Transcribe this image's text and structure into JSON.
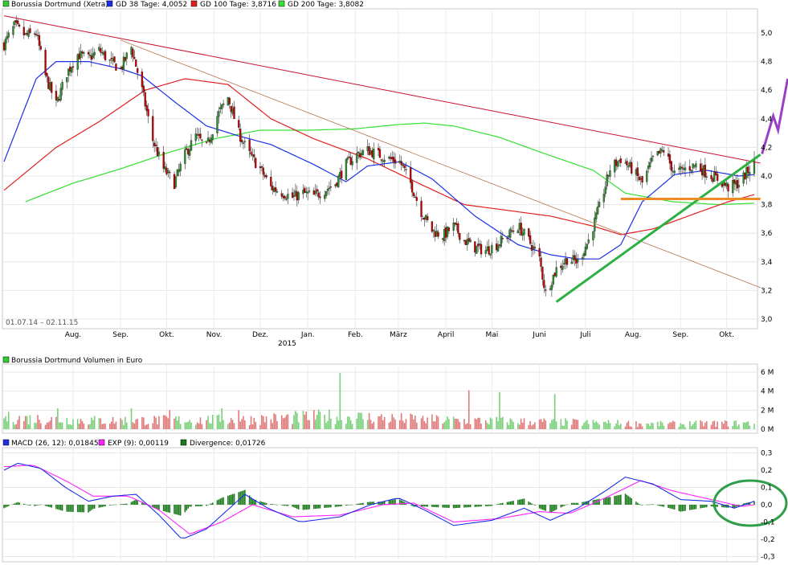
{
  "colors": {
    "price_up": "#2e8b2e",
    "price_down": "#c00000",
    "gd38": "#1c2fe6",
    "gd100": "#e02020",
    "gd200": "#33e033",
    "upper_trend": "#c8102e",
    "long_trend": "#b5734f",
    "support_trend": "#2db043",
    "horizontal_level": "#f08a24",
    "forecast_arrow": "#9b3fc6",
    "macd": "#1c2fe6",
    "exp": "#ff22ff",
    "divergence": "#1a7a1a",
    "vol_up": "#7ad07a",
    "vol_down": "#e07a7a",
    "highlight_circle": "#2e9e4a"
  },
  "chart_data": [
    {
      "type": "candlestick",
      "title": "",
      "legend": [
        {
          "name": "Borussia Dortmund (Xetra)",
          "color": "#33cc33"
        },
        {
          "name": "GD 38 Tage: 4,0052",
          "color": "#1c2fe6"
        },
        {
          "name": "GD 100 Tage: 3,8716",
          "color": "#e02020"
        },
        {
          "name": "GD 200 Tage: 3,8082",
          "color": "#33e033"
        }
      ],
      "date_range_label": "01.07.14 – 02.11.15",
      "x_tick_labels": [
        "Aug.",
        "Sep.",
        "Okt.",
        "Nov.",
        "Dez.",
        "Jan.",
        "Feb.",
        "März",
        "April",
        "Mai",
        "Juni",
        "Juli",
        "Aug.",
        "Sep.",
        "Okt."
      ],
      "year_label": "2015",
      "y_tick_labels": [
        "5,0",
        "4,8",
        "4,6",
        "4,4",
        "4,2",
        "4,0",
        "3,8",
        "3,6",
        "3,4",
        "3,2",
        "3,0"
      ],
      "ylim": [
        3.0,
        5.2
      ],
      "price_anchors": [
        [
          "2014-07-01",
          4.92
        ],
        [
          "2014-07-08",
          5.05
        ],
        [
          "2014-07-15",
          4.98
        ],
        [
          "2014-07-22",
          5.0
        ],
        [
          "2014-07-28",
          4.7
        ],
        [
          "2014-08-04",
          4.5
        ],
        [
          "2014-08-11",
          4.72
        ],
        [
          "2014-08-18",
          4.85
        ],
        [
          "2014-08-25",
          4.82
        ],
        [
          "2014-09-01",
          4.88
        ],
        [
          "2014-09-08",
          4.8
        ],
        [
          "2014-09-15",
          4.75
        ],
        [
          "2014-09-22",
          4.9
        ],
        [
          "2014-09-29",
          4.6
        ],
        [
          "2014-10-06",
          4.25
        ],
        [
          "2014-10-13",
          4.05
        ],
        [
          "2014-10-20",
          3.95
        ],
        [
          "2014-10-27",
          4.15
        ],
        [
          "2014-11-03",
          4.28
        ],
        [
          "2014-11-10",
          4.2
        ],
        [
          "2014-11-17",
          4.42
        ],
        [
          "2014-11-24",
          4.55
        ],
        [
          "2014-12-01",
          4.3
        ],
        [
          "2014-12-08",
          4.15
        ],
        [
          "2014-12-15",
          4.05
        ],
        [
          "2014-12-22",
          3.92
        ],
        [
          "2015-01-05",
          3.85
        ],
        [
          "2015-01-12",
          3.88
        ],
        [
          "2015-01-19",
          3.86
        ],
        [
          "2015-01-26",
          3.9
        ],
        [
          "2015-02-02",
          3.95
        ],
        [
          "2015-02-09",
          4.08
        ],
        [
          "2015-02-16",
          4.15
        ],
        [
          "2015-02-23",
          4.18
        ],
        [
          "2015-03-02",
          4.15
        ],
        [
          "2015-03-09",
          4.12
        ],
        [
          "2015-03-16",
          4.1
        ],
        [
          "2015-03-23",
          3.95
        ],
        [
          "2015-03-30",
          3.75
        ],
        [
          "2015-04-06",
          3.62
        ],
        [
          "2015-04-13",
          3.58
        ],
        [
          "2015-04-20",
          3.65
        ],
        [
          "2015-04-27",
          3.55
        ],
        [
          "2015-05-04",
          3.5
        ],
        [
          "2015-05-11",
          3.48
        ],
        [
          "2015-05-18",
          3.52
        ],
        [
          "2015-05-25",
          3.58
        ],
        [
          "2015-06-01",
          3.65
        ],
        [
          "2015-06-08",
          3.55
        ],
        [
          "2015-06-15",
          3.42
        ],
        [
          "2015-06-19",
          3.18
        ],
        [
          "2015-06-26",
          3.35
        ],
        [
          "2015-07-03",
          3.42
        ],
        [
          "2015-07-10",
          3.4
        ],
        [
          "2015-07-17",
          3.55
        ],
        [
          "2015-07-24",
          3.78
        ],
        [
          "2015-07-31",
          4.05
        ],
        [
          "2015-08-07",
          4.12
        ],
        [
          "2015-08-14",
          4.05
        ],
        [
          "2015-08-21",
          3.95
        ],
        [
          "2015-08-28",
          4.12
        ],
        [
          "2015-09-04",
          4.18
        ],
        [
          "2015-09-11",
          4.02
        ],
        [
          "2015-09-18",
          4.05
        ],
        [
          "2015-09-25",
          4.08
        ],
        [
          "2015-10-02",
          4.02
        ],
        [
          "2015-10-09",
          3.98
        ],
        [
          "2015-10-16",
          3.92
        ],
        [
          "2015-10-23",
          3.95
        ],
        [
          "2015-10-30",
          4.05
        ],
        [
          "2015-11-02",
          4.1
        ]
      ],
      "gd38_anchors": [
        [
          "2014-07-01",
          4.1
        ],
        [
          "2014-07-22",
          4.68
        ],
        [
          "2014-08-04",
          4.8
        ],
        [
          "2014-08-25",
          4.8
        ],
        [
          "2014-09-15",
          4.75
        ],
        [
          "2014-09-29",
          4.7
        ],
        [
          "2014-10-20",
          4.52
        ],
        [
          "2014-11-10",
          4.35
        ],
        [
          "2014-12-01",
          4.28
        ],
        [
          "2014-12-22",
          4.22
        ],
        [
          "2015-01-19",
          4.08
        ],
        [
          "2015-02-09",
          3.96
        ],
        [
          "2015-02-23",
          4.07
        ],
        [
          "2015-03-16",
          4.1
        ],
        [
          "2015-04-06",
          3.98
        ],
        [
          "2015-05-04",
          3.72
        ],
        [
          "2015-06-01",
          3.52
        ],
        [
          "2015-06-22",
          3.45
        ],
        [
          "2015-07-10",
          3.42
        ],
        [
          "2015-07-24",
          3.42
        ],
        [
          "2015-08-07",
          3.52
        ],
        [
          "2015-08-21",
          3.82
        ],
        [
          "2015-09-11",
          4.01
        ],
        [
          "2015-10-02",
          4.04
        ],
        [
          "2015-10-23",
          4.0
        ],
        [
          "2015-11-02",
          4.01
        ]
      ],
      "gd100_anchors": [
        [
          "2014-07-01",
          3.9
        ],
        [
          "2014-08-04",
          4.2
        ],
        [
          "2014-09-01",
          4.38
        ],
        [
          "2014-10-01",
          4.6
        ],
        [
          "2014-10-27",
          4.68
        ],
        [
          "2014-11-24",
          4.64
        ],
        [
          "2014-12-22",
          4.4
        ],
        [
          "2015-01-19",
          4.26
        ],
        [
          "2015-02-23",
          4.12
        ],
        [
          "2015-03-30",
          3.94
        ],
        [
          "2015-04-27",
          3.8
        ],
        [
          "2015-05-25",
          3.76
        ],
        [
          "2015-06-22",
          3.72
        ],
        [
          "2015-07-20",
          3.65
        ],
        [
          "2015-08-07",
          3.59
        ],
        [
          "2015-08-28",
          3.63
        ],
        [
          "2015-09-25",
          3.74
        ],
        [
          "2015-10-16",
          3.82
        ],
        [
          "2015-11-02",
          3.87
        ]
      ],
      "gd200_anchors": [
        [
          "2014-07-15",
          3.82
        ],
        [
          "2014-08-15",
          3.95
        ],
        [
          "2014-09-15",
          4.05
        ],
        [
          "2014-10-15",
          4.16
        ],
        [
          "2014-11-15",
          4.26
        ],
        [
          "2014-12-15",
          4.32
        ],
        [
          "2015-01-15",
          4.32
        ],
        [
          "2015-02-15",
          4.33
        ],
        [
          "2015-03-15",
          4.36
        ],
        [
          "2015-04-01",
          4.37
        ],
        [
          "2015-04-20",
          4.35
        ],
        [
          "2015-05-20",
          4.27
        ],
        [
          "2015-06-20",
          4.15
        ],
        [
          "2015-07-20",
          4.04
        ],
        [
          "2015-08-10",
          3.88
        ],
        [
          "2015-09-10",
          3.82
        ],
        [
          "2015-10-10",
          3.8
        ],
        [
          "2015-11-02",
          3.81
        ]
      ],
      "trend_lines": [
        {
          "name": "upper",
          "from": [
            "2014-07-01",
            5.12
          ],
          "to": [
            "2015-11-06",
            4.09
          ]
        },
        {
          "name": "long",
          "from": [
            "2014-09-15",
            4.95
          ],
          "to": [
            "2015-11-06",
            3.22
          ]
        },
        {
          "name": "support",
          "from": [
            "2015-06-26",
            3.12
          ],
          "to": [
            "2015-11-06",
            4.15
          ]
        },
        {
          "name": "horizontal",
          "from": [
            "2015-08-07",
            3.84
          ],
          "to": [
            "2015-11-06",
            3.84
          ]
        }
      ]
    },
    {
      "type": "bar",
      "title": "",
      "legend": [
        {
          "name": "Borussia Dortmund Volumen in Euro",
          "color": "#33cc33"
        }
      ],
      "y_tick_labels": [
        "6 M",
        "4 M",
        "2 M",
        "0 M"
      ],
      "ylim": [
        0,
        6
      ],
      "unit": "M EUR",
      "spikes": [
        [
          "2014-08-05",
          2.2
        ],
        [
          "2014-09-22",
          2.2
        ],
        [
          "2014-10-17",
          2.0
        ],
        [
          "2014-11-20",
          2.2
        ],
        [
          "2014-12-01",
          2.0
        ],
        [
          "2015-02-05",
          5.9
        ],
        [
          "2015-04-30",
          4.1
        ],
        [
          "2015-05-20",
          3.9
        ],
        [
          "2015-06-25",
          3.7
        ]
      ],
      "baseline_anchors": [
        [
          "2014-07-01",
          1.3
        ],
        [
          "2014-09-01",
          1.0
        ],
        [
          "2014-12-01",
          1.1
        ],
        [
          "2015-02-01",
          1.5
        ],
        [
          "2015-04-01",
          1.1
        ],
        [
          "2015-07-01",
          0.8
        ],
        [
          "2015-09-01",
          0.6
        ],
        [
          "2015-11-02",
          0.7
        ]
      ]
    },
    {
      "type": "line",
      "title": "",
      "legend": [
        {
          "name": "MACD (26, 12): 0,01845",
          "color": "#1c2fe6"
        },
        {
          "name": "EXP (9): 0,00119",
          "color": "#ff22ff"
        },
        {
          "name": "Divergence: 0,01726",
          "color": "#1a7a1a"
        }
      ],
      "y_tick_labels": [
        "0,3",
        "0,2",
        "0,1",
        "0,0",
        "-0,1",
        "-0,2",
        "-0,3"
      ],
      "ylim": [
        -0.3,
        0.3
      ],
      "macd_anchors": [
        [
          "2014-07-01",
          0.2
        ],
        [
          "2014-07-10",
          0.24
        ],
        [
          "2014-07-25",
          0.21
        ],
        [
          "2014-08-10",
          0.1
        ],
        [
          "2014-08-25",
          0.02
        ],
        [
          "2014-09-10",
          0.05
        ],
        [
          "2014-09-25",
          0.06
        ],
        [
          "2014-10-10",
          -0.06
        ],
        [
          "2014-10-25",
          -0.2
        ],
        [
          "2014-11-10",
          -0.14
        ],
        [
          "2014-11-25",
          -0.02
        ],
        [
          "2014-12-05",
          0.06
        ],
        [
          "2014-12-20",
          -0.02
        ],
        [
          "2015-01-10",
          -0.1
        ],
        [
          "2015-02-05",
          -0.07
        ],
        [
          "2015-02-25",
          0.0
        ],
        [
          "2015-03-15",
          0.04
        ],
        [
          "2015-04-01",
          -0.03
        ],
        [
          "2015-04-20",
          -0.12
        ],
        [
          "2015-05-15",
          -0.09
        ],
        [
          "2015-06-05",
          -0.02
        ],
        [
          "2015-06-22",
          -0.09
        ],
        [
          "2015-07-10",
          -0.02
        ],
        [
          "2015-07-28",
          0.08
        ],
        [
          "2015-08-10",
          0.16
        ],
        [
          "2015-08-28",
          0.12
        ],
        [
          "2015-09-15",
          0.03
        ],
        [
          "2015-10-05",
          0.02
        ],
        [
          "2015-10-20",
          -0.02
        ],
        [
          "2015-11-02",
          0.02
        ]
      ],
      "exp_anchors": [
        [
          "2014-07-01",
          0.22
        ],
        [
          "2014-07-20",
          0.23
        ],
        [
          "2014-08-10",
          0.14
        ],
        [
          "2014-08-28",
          0.05
        ],
        [
          "2014-09-20",
          0.05
        ],
        [
          "2014-10-10",
          -0.03
        ],
        [
          "2014-10-30",
          -0.17
        ],
        [
          "2014-11-20",
          -0.1
        ],
        [
          "2014-12-10",
          0.0
        ],
        [
          "2015-01-05",
          -0.07
        ],
        [
          "2015-02-05",
          -0.06
        ],
        [
          "2015-03-05",
          0.0
        ],
        [
          "2015-03-25",
          0.01
        ],
        [
          "2015-04-20",
          -0.1
        ],
        [
          "2015-05-20",
          -0.08
        ],
        [
          "2015-06-15",
          -0.04
        ],
        [
          "2015-07-05",
          -0.05
        ],
        [
          "2015-07-28",
          0.04
        ],
        [
          "2015-08-20",
          0.14
        ],
        [
          "2015-09-10",
          0.08
        ],
        [
          "2015-10-05",
          0.03
        ],
        [
          "2015-10-25",
          -0.01
        ],
        [
          "2015-11-02",
          0.0
        ]
      ]
    }
  ]
}
